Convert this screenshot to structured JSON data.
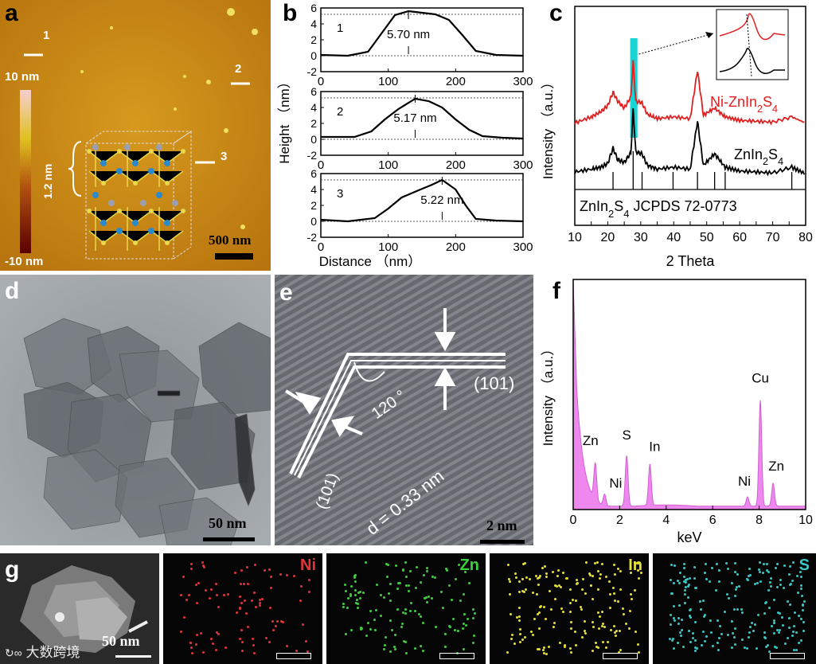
{
  "panel_labels": {
    "a": "a",
    "b": "b",
    "c": "c",
    "d": "d",
    "e": "e",
    "f": "f",
    "g": "g"
  },
  "afm": {
    "markers": [
      "1",
      "2",
      "3"
    ],
    "scale_top": "10 nm",
    "scale_bottom": "-10 nm",
    "layer_thickness": "1.2 nm",
    "scale_bar": "500 nm"
  },
  "tem": {
    "scale_bar": "50 nm"
  },
  "hrtem": {
    "angle": "120 °",
    "plane_right": "(101)",
    "plane_left": "(101)",
    "d_spacing": "d = 0.33 nm",
    "scale_bar": "2 nm"
  },
  "mapping": {
    "scale_bar": "50 nm",
    "elements": [
      {
        "symbol": "Ni",
        "color": "#e0353a"
      },
      {
        "symbol": "Zn",
        "color": "#3ccf3c"
      },
      {
        "symbol": "In",
        "color": "#e6e03a"
      },
      {
        "symbol": "S",
        "color": "#3ac6c6"
      }
    ]
  },
  "watermark": "大数跨境",
  "chart_data": [
    {
      "id": "b",
      "type": "line",
      "xlabel": "Distance （nm）",
      "ylabel": "Height （nm）",
      "xlim": [
        0,
        300
      ],
      "ylim": [
        -2,
        6
      ],
      "xticks": [
        "0",
        "100",
        "200",
        "300"
      ],
      "yticks": [
        "-2",
        "0",
        "2",
        "4",
        "6"
      ],
      "series": [
        {
          "name": "1",
          "annotation": "5.70 nm",
          "x": [
            0,
            40,
            70,
            90,
            110,
            130,
            150,
            170,
            190,
            210,
            230,
            260,
            300
          ],
          "y": [
            0.1,
            0,
            0.5,
            2.8,
            5.1,
            5.6,
            5.4,
            5.2,
            4.5,
            2.6,
            0.6,
            0.1,
            0
          ]
        },
        {
          "name": "2",
          "annotation": "5.17 nm",
          "x": [
            0,
            50,
            75,
            95,
            115,
            140,
            160,
            180,
            200,
            220,
            240,
            270,
            300
          ],
          "y": [
            0.3,
            0.3,
            1.0,
            2.5,
            3.8,
            5.1,
            4.8,
            4.0,
            2.5,
            1.2,
            0.4,
            0.2,
            0.1
          ]
        },
        {
          "name": "3",
          "annotation": "5.22 nm",
          "x": [
            0,
            40,
            80,
            100,
            120,
            145,
            165,
            180,
            200,
            215,
            230,
            260,
            300
          ],
          "y": [
            0.2,
            0,
            0.4,
            1.6,
            3.0,
            3.9,
            4.6,
            5.2,
            4.0,
            2.0,
            0.3,
            0.1,
            0
          ]
        }
      ]
    },
    {
      "id": "c",
      "type": "line",
      "xlabel": "2 Theta",
      "ylabel": "Intensity （a.u.）",
      "xlim": [
        10,
        80
      ],
      "xticks": [
        "10",
        "15",
        "20",
        "25",
        "30",
        "35",
        "40",
        "45",
        "50",
        "55",
        "60",
        "65",
        "70",
        "75",
        "80"
      ],
      "reference": "ZnIn2S4  JCPDS 72-0773",
      "reference_peaks": [
        21.6,
        27.7,
        30.4,
        39.8,
        47.2,
        52.4,
        55.6,
        75.8
      ],
      "series": [
        {
          "name": "Ni-ZnIn2S4",
          "color": "#e02020",
          "x": [
            10,
            15,
            18,
            20,
            21.6,
            23,
            25,
            27,
            27.7,
            28.5,
            30.4,
            32,
            35,
            40,
            45,
            47.2,
            49,
            52.4,
            55.6,
            60,
            65,
            70,
            75.8,
            80
          ],
          "y": [
            0.05,
            0.12,
            0.18,
            0.25,
            0.4,
            0.3,
            0.22,
            0.35,
            0.75,
            0.3,
            0.28,
            0.15,
            0.1,
            0.12,
            0.1,
            0.65,
            0.14,
            0.22,
            0.12,
            0.08,
            0.07,
            0.06,
            0.12,
            0.05
          ]
        },
        {
          "name": "ZnIn2S4",
          "color": "#000000",
          "x": [
            10,
            15,
            18,
            20,
            21.6,
            23,
            25,
            27,
            27.7,
            28.5,
            30.4,
            32,
            35,
            40,
            45,
            47.2,
            49,
            52.4,
            55.6,
            60,
            65,
            70,
            75.8,
            80
          ],
          "y": [
            0.05,
            0.08,
            0.1,
            0.14,
            0.3,
            0.18,
            0.15,
            0.25,
            0.7,
            0.26,
            0.24,
            0.12,
            0.08,
            0.1,
            0.08,
            0.58,
            0.12,
            0.24,
            0.1,
            0.06,
            0.05,
            0.04,
            0.1,
            0.03
          ]
        }
      ]
    },
    {
      "id": "f",
      "type": "area",
      "xlabel": "keV",
      "ylabel": "Intensity （a.u.）",
      "xlim": [
        0,
        10
      ],
      "xticks": [
        "0",
        "2",
        "4",
        "6",
        "8",
        "10"
      ],
      "peaks": [
        {
          "element": "Zn",
          "x": 0.95,
          "y": 0.16
        },
        {
          "element": "Ni",
          "x": 1.35,
          "y": 0.05
        },
        {
          "element": "S",
          "x": 2.3,
          "y": 0.22
        },
        {
          "element": "In",
          "x": 3.3,
          "y": 0.18
        },
        {
          "element": "Ni",
          "x": 7.5,
          "y": 0.04
        },
        {
          "element": "Cu",
          "x": 8.05,
          "y": 0.46
        },
        {
          "element": "Zn",
          "x": 8.6,
          "y": 0.1
        }
      ]
    }
  ]
}
